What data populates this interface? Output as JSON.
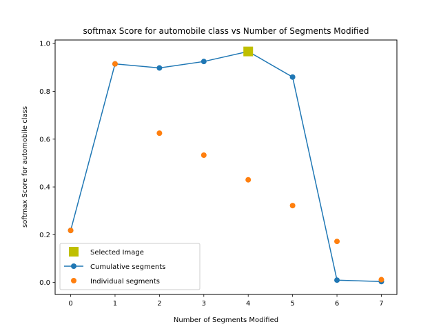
{
  "chart_data": {
    "type": "line",
    "title": "softmax Score for automobile class vs Number of Segments Modified",
    "xlabel": "Number of Segments Modified",
    "ylabel": "softmax Score for automobile class",
    "xlim": [
      -0.35,
      7.35
    ],
    "ylim": [
      -0.05,
      1.015
    ],
    "xticks": [
      0,
      1,
      2,
      3,
      4,
      5,
      6,
      7
    ],
    "yticks": [
      "0.0",
      "0.2",
      "0.4",
      "0.6",
      "0.8",
      "1.0"
    ],
    "grid": false,
    "legend_position": "lower-left",
    "series": [
      {
        "name": "Selected Image",
        "style": "marker-square",
        "color": "#bfbf00",
        "x": [
          4
        ],
        "y": [
          0.967
        ]
      },
      {
        "name": "Cumulative segments",
        "style": "line-marker",
        "color": "#1f77b4",
        "x": [
          0,
          1,
          2,
          3,
          4,
          5,
          6,
          7
        ],
        "y": [
          0.218,
          0.915,
          0.898,
          0.925,
          0.967,
          0.86,
          0.01,
          0.004
        ]
      },
      {
        "name": "Individual segments",
        "style": "marker-circle",
        "color": "#ff7f0e",
        "x": [
          0,
          1,
          2,
          3,
          4,
          5,
          6,
          7
        ],
        "y": [
          0.218,
          0.915,
          0.625,
          0.533,
          0.43,
          0.322,
          0.172,
          0.012
        ]
      }
    ]
  }
}
